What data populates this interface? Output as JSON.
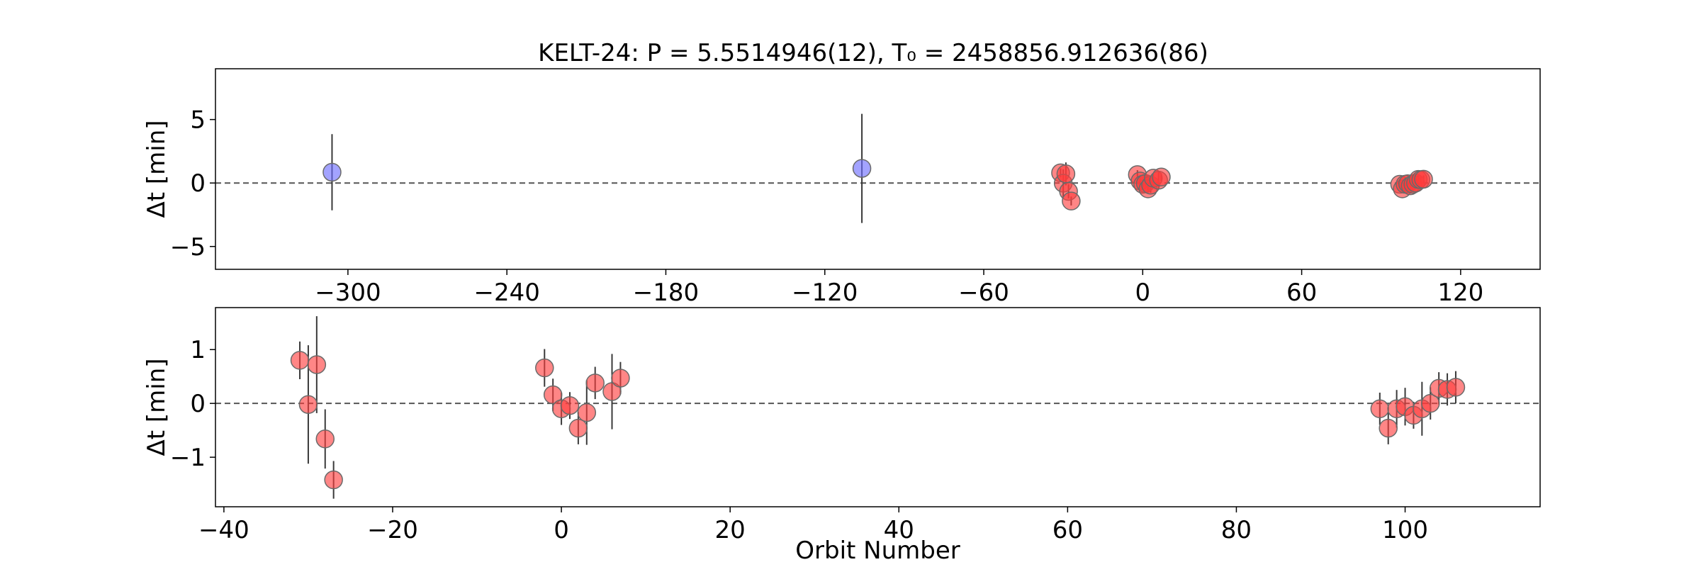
{
  "chart_data": {
    "title": "KELT-24: P = 5.5514946(12), T₀ = 2458856.912636(86)",
    "shared_xlabel": "Orbit Number",
    "panels": [
      {
        "type": "scatter",
        "xlabel": "",
        "ylabel": "Δt [min]",
        "xlim": [
          -350,
          150
        ],
        "ylim": [
          -6.8,
          9
        ],
        "xticks": [
          -300,
          -240,
          -180,
          -120,
          -60,
          0,
          60,
          120
        ],
        "yticks": [
          5,
          0,
          -5
        ],
        "ytick_labels": [
          "5",
          "0",
          "−5"
        ],
        "zero_line": true,
        "series": [
          {
            "color": "#6b6bff",
            "points": [
              {
                "x": -306,
                "y": 0.85,
                "err": 3.0
              },
              {
                "x": -106,
                "y": 1.15,
                "err": 4.3
              }
            ]
          },
          {
            "color": "#ff3b3b",
            "points": [
              {
                "x": -31,
                "y": 0.8,
                "err": 0.35
              },
              {
                "x": -30,
                "y": -0.02,
                "err": 1.1
              },
              {
                "x": -29,
                "y": 0.72,
                "err": 0.9
              },
              {
                "x": -28,
                "y": -0.66,
                "err": 0.55
              },
              {
                "x": -27,
                "y": -1.42,
                "err": 0.35
              },
              {
                "x": -2,
                "y": 0.66,
                "err": 0.35
              },
              {
                "x": -1,
                "y": 0.16,
                "err": 0.3
              },
              {
                "x": 0,
                "y": -0.1,
                "err": 0.3
              },
              {
                "x": 1,
                "y": -0.04,
                "err": 0.25
              },
              {
                "x": 2,
                "y": -0.46,
                "err": 0.3
              },
              {
                "x": 3,
                "y": -0.17,
                "err": 0.6
              },
              {
                "x": 4,
                "y": 0.38,
                "err": 0.3
              },
              {
                "x": 6,
                "y": 0.22,
                "err": 0.7
              },
              {
                "x": 7,
                "y": 0.47,
                "err": 0.3
              },
              {
                "x": 97,
                "y": -0.1,
                "err": 0.3
              },
              {
                "x": 98,
                "y": -0.46,
                "err": 0.3
              },
              {
                "x": 99,
                "y": -0.1,
                "err": 0.35
              },
              {
                "x": 100,
                "y": -0.06,
                "err": 0.35
              },
              {
                "x": 101,
                "y": -0.22,
                "err": 0.25
              },
              {
                "x": 102,
                "y": -0.1,
                "err": 0.5
              },
              {
                "x": 103,
                "y": 0.0,
                "err": 0.3
              },
              {
                "x": 104,
                "y": 0.28,
                "err": 0.3
              },
              {
                "x": 105,
                "y": 0.26,
                "err": 0.3
              },
              {
                "x": 106,
                "y": 0.3,
                "err": 0.3
              }
            ]
          }
        ]
      },
      {
        "type": "scatter",
        "xlabel": "Orbit Number",
        "ylabel": "Δt [min]",
        "xlim": [
          -41,
          116
        ],
        "ylim": [
          -1.92,
          1.78
        ],
        "xticks": [
          -40,
          -20,
          0,
          20,
          40,
          60,
          80,
          100
        ],
        "xtick_labels": [
          "−40",
          "−20",
          "0",
          "20",
          "40",
          "60",
          "80",
          "100"
        ],
        "yticks": [
          1,
          0,
          -1
        ],
        "ytick_labels": [
          "1",
          "0",
          "−1"
        ],
        "zero_line": true,
        "series": [
          {
            "color": "#ff3b3b",
            "points": [
              {
                "x": -31,
                "y": 0.8,
                "err": 0.35
              },
              {
                "x": -30,
                "y": -0.02,
                "err": 1.1
              },
              {
                "x": -29,
                "y": 0.72,
                "err": 0.9
              },
              {
                "x": -28,
                "y": -0.66,
                "err": 0.55
              },
              {
                "x": -27,
                "y": -1.42,
                "err": 0.35
              },
              {
                "x": -2,
                "y": 0.66,
                "err": 0.35
              },
              {
                "x": -1,
                "y": 0.16,
                "err": 0.3
              },
              {
                "x": 0,
                "y": -0.1,
                "err": 0.3
              },
              {
                "x": 1,
                "y": -0.04,
                "err": 0.25
              },
              {
                "x": 2,
                "y": -0.46,
                "err": 0.3
              },
              {
                "x": 3,
                "y": -0.17,
                "err": 0.6
              },
              {
                "x": 4,
                "y": 0.38,
                "err": 0.3
              },
              {
                "x": 6,
                "y": 0.22,
                "err": 0.7
              },
              {
                "x": 7,
                "y": 0.47,
                "err": 0.3
              },
              {
                "x": 97,
                "y": -0.1,
                "err": 0.3
              },
              {
                "x": 98,
                "y": -0.46,
                "err": 0.3
              },
              {
                "x": 99,
                "y": -0.1,
                "err": 0.35
              },
              {
                "x": 100,
                "y": -0.06,
                "err": 0.35
              },
              {
                "x": 101,
                "y": -0.22,
                "err": 0.25
              },
              {
                "x": 102,
                "y": -0.1,
                "err": 0.5
              },
              {
                "x": 103,
                "y": 0.0,
                "err": 0.3
              },
              {
                "x": 104,
                "y": 0.28,
                "err": 0.3
              },
              {
                "x": 105,
                "y": 0.26,
                "err": 0.3
              },
              {
                "x": 106,
                "y": 0.3,
                "err": 0.3
              }
            ]
          }
        ]
      }
    ]
  }
}
